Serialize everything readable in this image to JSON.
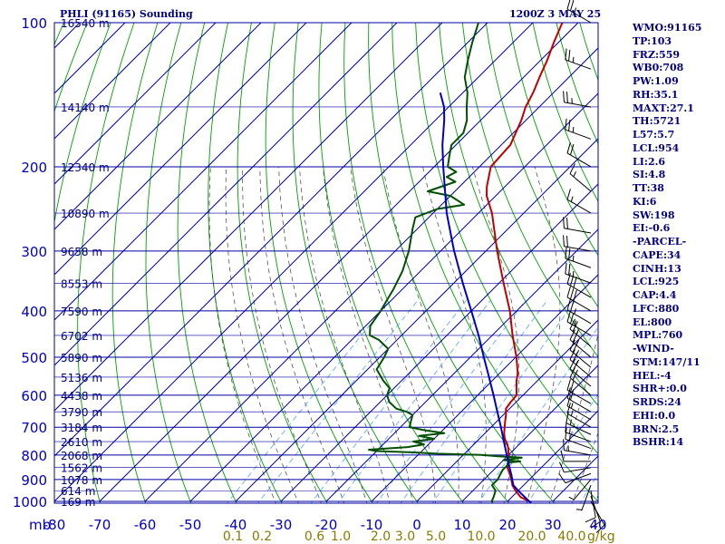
{
  "header": {
    "station_title": "PHLI (91165) Sounding",
    "time_title": "1200Z  3 MAY 25"
  },
  "colors": {
    "grid": "#0000a0",
    "dry_adiabat": "#00a000",
    "moist_adiabat": "#404040",
    "mixing_ratio": "#4fa3ff",
    "temperature": "#c00000",
    "dewpoint": "#005000",
    "parcel": "#0000c0",
    "height_labels": "#000080",
    "pressure_labels": "#0000c0",
    "temp_labels": "#0000c0",
    "mixing_labels": "#8a7a00"
  },
  "indices": [
    "WMO:91165",
    "TP:103",
    "FRZ:559",
    "WB0:708",
    "PW:1.09",
    "RH:35.1",
    "MAXT:27.1",
    "TH:5721",
    "L57:5.7",
    "LCL:954",
    "LI:2.6",
    "SI:4.8",
    "TT:38",
    "KI:6",
    "SW:198",
    "EI:-0.6",
    "-PARCEL-",
    "CAPE:34",
    "CINH:13",
    "LCL:925",
    "CAP:4.4",
    "LFC:880",
    "EL:800",
    "MPL:760",
    "-WIND-",
    "STM:147/11",
    "HEL:-4",
    "SHR+:0.0",
    "SRDS:24",
    "EHI:0.0",
    "BRN:2.5",
    "BSHR:14"
  ],
  "chart_data": {
    "type": "line",
    "title": "PHLI (91165) Sounding",
    "xlabel": "",
    "ylabel": "mb",
    "xlim": [
      -80,
      30
    ],
    "ylim": [
      1000,
      100
    ],
    "x_unit_label": "mb",
    "x_tick_labels": [
      "-80",
      "-70",
      "-60",
      "-50",
      "-40",
      "-30",
      "-20",
      "-10",
      "0",
      "10",
      "20",
      "30",
      "40"
    ],
    "pressure_levels": [
      100,
      200,
      300,
      400,
      500,
      600,
      700,
      800,
      900,
      1000
    ],
    "height_labels": [
      {
        "p": 100,
        "text": "16540 m"
      },
      {
        "p": 150,
        "text": "14140 m"
      },
      {
        "p": 200,
        "text": "12340 m"
      },
      {
        "p": 250,
        "text": "10890 m"
      },
      {
        "p": 300,
        "text": "9658 m"
      },
      {
        "p": 350,
        "text": "8553 m"
      },
      {
        "p": 400,
        "text": "7590 m"
      },
      {
        "p": 450,
        "text": "6702 m"
      },
      {
        "p": 500,
        "text": "5890 m"
      },
      {
        "p": 550,
        "text": "5136 m"
      },
      {
        "p": 600,
        "text": "4438 m"
      },
      {
        "p": 650,
        "text": "3790 m"
      },
      {
        "p": 700,
        "text": "3184 m"
      },
      {
        "p": 750,
        "text": "2610 m"
      },
      {
        "p": 800,
        "text": "2068 m"
      },
      {
        "p": 850,
        "text": "1562 m"
      },
      {
        "p": 900,
        "text": "1078 m"
      },
      {
        "p": 950,
        "text": "614 m"
      },
      {
        "p": 1000,
        "text": "169 m"
      }
    ],
    "mixing_ratio_labels": [
      {
        "w": 0.1,
        "text": "0.1"
      },
      {
        "w": 0.2,
        "text": "0.2"
      },
      {
        "w": 0.6,
        "text": "0.6"
      },
      {
        "w": 1.0,
        "text": "1.0"
      },
      {
        "w": 2.0,
        "text": "2.0"
      },
      {
        "w": 3.0,
        "text": "3.0"
      },
      {
        "w": 5.0,
        "text": "5.0"
      },
      {
        "w": 10.0,
        "text": "10.0"
      },
      {
        "w": 20.0,
        "text": "20.0"
      },
      {
        "w": 40.0,
        "text": "40.0"
      }
    ],
    "mixing_unit_label": "g/kg",
    "series": [
      {
        "name": "Temperature",
        "color_key": "temperature",
        "points": [
          [
            1005,
            25.5
          ],
          [
            1000,
            24.8
          ],
          [
            980,
            22.0
          ],
          [
            950,
            19.4
          ],
          [
            925,
            17.5
          ],
          [
            900,
            16.0
          ],
          [
            870,
            14.0
          ],
          [
            850,
            12.5
          ],
          [
            820,
            11.2
          ],
          [
            800,
            10.0
          ],
          [
            780,
            8.8
          ],
          [
            760,
            7.4
          ],
          [
            740,
            5.6
          ],
          [
            720,
            4.2
          ],
          [
            700,
            3.0
          ],
          [
            680,
            1.8
          ],
          [
            660,
            0.6
          ],
          [
            640,
            -0.8
          ],
          [
            620,
            -1.2
          ],
          [
            600,
            -1.4
          ],
          [
            580,
            -3.0
          ],
          [
            560,
            -4.6
          ],
          [
            540,
            -6.0
          ],
          [
            500,
            -9.8
          ],
          [
            450,
            -15.5
          ],
          [
            400,
            -21.5
          ],
          [
            350,
            -29.0
          ],
          [
            300,
            -37.5
          ],
          [
            250,
            -47.0
          ],
          [
            230,
            -52.0
          ],
          [
            220,
            -54.0
          ],
          [
            200,
            -57.5
          ],
          [
            180,
            -58.0
          ],
          [
            160,
            -61.0
          ],
          [
            150,
            -63.0
          ],
          [
            140,
            -64.5
          ],
          [
            130,
            -66.5
          ],
          [
            120,
            -68.5
          ],
          [
            110,
            -71.0
          ],
          [
            100,
            -73.5
          ]
        ]
      },
      {
        "name": "Dewpoint",
        "color_key": "dewpoint",
        "points": [
          [
            1005,
            17.0
          ],
          [
            1000,
            16.5
          ],
          [
            980,
            16.0
          ],
          [
            950,
            15.0
          ],
          [
            925,
            13.0
          ],
          [
            900,
            13.0
          ],
          [
            880,
            12.5
          ],
          [
            860,
            12.0
          ],
          [
            850,
            12.0
          ],
          [
            840,
            12.0
          ],
          [
            830,
            11.5
          ],
          [
            825,
            14.0
          ],
          [
            820,
            10.0
          ],
          [
            810,
            13.5
          ],
          [
            805,
            8.0
          ],
          [
            800,
            4.0
          ],
          [
            795,
            -6.0
          ],
          [
            790,
            -12.0
          ],
          [
            785,
            -20.0
          ],
          [
            780,
            -22.0
          ],
          [
            770,
            -14.0
          ],
          [
            760,
            -11.0
          ],
          [
            750,
            -14.0
          ],
          [
            740,
            -10.0
          ],
          [
            730,
            -14.0
          ],
          [
            720,
            -9.0
          ],
          [
            710,
            -14.0
          ],
          [
            700,
            -18.0
          ],
          [
            680,
            -19.0
          ],
          [
            660,
            -20.0
          ],
          [
            650,
            -22.0
          ],
          [
            640,
            -25.0
          ],
          [
            620,
            -28.0
          ],
          [
            600,
            -30.0
          ],
          [
            580,
            -31.0
          ],
          [
            560,
            -34.0
          ],
          [
            530,
            -38.0
          ],
          [
            500,
            -39.0
          ],
          [
            480,
            -40.0
          ],
          [
            460,
            -44.0
          ],
          [
            450,
            -47.0
          ],
          [
            430,
            -49.0
          ],
          [
            400,
            -50.0
          ],
          [
            380,
            -51.0
          ],
          [
            360,
            -52.0
          ],
          [
            330,
            -54.0
          ],
          [
            300,
            -57.0
          ],
          [
            270,
            -61.0
          ],
          [
            255,
            -63.0
          ],
          [
            245,
            -60.0
          ],
          [
            240,
            -55.0
          ],
          [
            230,
            -60.0
          ],
          [
            225,
            -66.0
          ],
          [
            215,
            -62.0
          ],
          [
            210,
            -65.0
          ],
          [
            205,
            -64.0
          ],
          [
            200,
            -67.0
          ],
          [
            190,
            -69.0
          ],
          [
            180,
            -71.0
          ],
          [
            170,
            -71.0
          ],
          [
            160,
            -73.0
          ],
          [
            150,
            -76.0
          ],
          [
            140,
            -79.0
          ],
          [
            130,
            -83.0
          ],
          [
            120,
            -86.0
          ],
          [
            110,
            -89.0
          ],
          [
            100,
            -92.0
          ]
        ]
      },
      {
        "name": "Parcel",
        "color_key": "parcel",
        "points": [
          [
            1005,
            25.5
          ],
          [
            1000,
            24.8
          ],
          [
            950,
            20.0
          ],
          [
            925,
            17.7
          ],
          [
            900,
            16.2
          ],
          [
            880,
            15.0
          ],
          [
            850,
            13.0
          ],
          [
            800,
            9.6
          ],
          [
            750,
            6.0
          ],
          [
            700,
            2.2
          ],
          [
            650,
            -2.0
          ],
          [
            600,
            -6.5
          ],
          [
            550,
            -11.5
          ],
          [
            500,
            -17.0
          ],
          [
            450,
            -23.0
          ],
          [
            400,
            -30.0
          ],
          [
            350,
            -38.0
          ],
          [
            300,
            -47.0
          ],
          [
            250,
            -57.0
          ],
          [
            200,
            -68.0
          ],
          [
            180,
            -73.0
          ],
          [
            160,
            -78.0
          ],
          [
            150,
            -81.0
          ],
          [
            140,
            -85.0
          ]
        ]
      }
    ],
    "wind_barbs": [
      {
        "p": 1000,
        "dir": 150,
        "spd": 10
      },
      {
        "p": 975,
        "dir": 160,
        "spd": 10
      },
      {
        "p": 950,
        "dir": 170,
        "spd": 10
      },
      {
        "p": 925,
        "dir": 200,
        "spd": 5
      },
      {
        "p": 900,
        "dir": 220,
        "spd": 5
      },
      {
        "p": 875,
        "dir": 250,
        "spd": 10
      },
      {
        "p": 850,
        "dir": 260,
        "spd": 10
      },
      {
        "p": 825,
        "dir": 270,
        "spd": 10
      },
      {
        "p": 800,
        "dir": 280,
        "spd": 15
      },
      {
        "p": 775,
        "dir": 290,
        "spd": 15
      },
      {
        "p": 750,
        "dir": 290,
        "spd": 15
      },
      {
        "p": 725,
        "dir": 295,
        "spd": 15
      },
      {
        "p": 700,
        "dir": 300,
        "spd": 15
      },
      {
        "p": 675,
        "dir": 300,
        "spd": 15
      },
      {
        "p": 650,
        "dir": 300,
        "spd": 20
      },
      {
        "p": 625,
        "dir": 300,
        "spd": 20
      },
      {
        "p": 600,
        "dir": 310,
        "spd": 20
      },
      {
        "p": 575,
        "dir": 310,
        "spd": 20
      },
      {
        "p": 550,
        "dir": 310,
        "spd": 25
      },
      {
        "p": 525,
        "dir": 310,
        "spd": 25
      },
      {
        "p": 500,
        "dir": 310,
        "spd": 25
      },
      {
        "p": 475,
        "dir": 310,
        "spd": 25
      },
      {
        "p": 450,
        "dir": 300,
        "spd": 25
      },
      {
        "p": 425,
        "dir": 300,
        "spd": 25
      },
      {
        "p": 400,
        "dir": 300,
        "spd": 30
      },
      {
        "p": 375,
        "dir": 300,
        "spd": 30
      },
      {
        "p": 350,
        "dir": 290,
        "spd": 25
      },
      {
        "p": 325,
        "dir": 290,
        "spd": 25
      },
      {
        "p": 300,
        "dir": 280,
        "spd": 20
      },
      {
        "p": 275,
        "dir": 280,
        "spd": 20
      },
      {
        "p": 250,
        "dir": 300,
        "spd": 15
      },
      {
        "p": 225,
        "dir": 310,
        "spd": 15
      },
      {
        "p": 200,
        "dir": 300,
        "spd": 20
      },
      {
        "p": 175,
        "dir": 290,
        "spd": 25
      },
      {
        "p": 150,
        "dir": 280,
        "spd": 25
      },
      {
        "p": 125,
        "dir": 290,
        "spd": 25
      },
      {
        "p": 100,
        "dir": 300,
        "spd": 25
      }
    ]
  }
}
